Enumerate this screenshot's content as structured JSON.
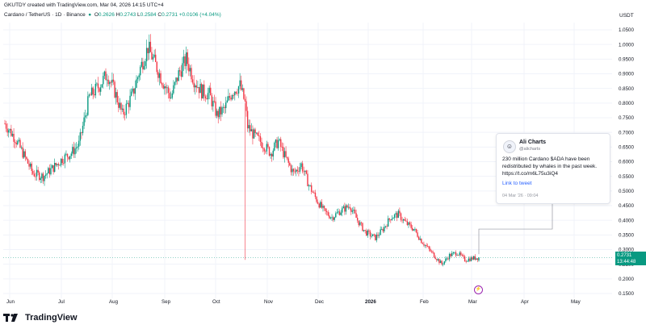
{
  "header": {
    "text": "GKUTDY created with TradingView.com, Mar 04, 2026 14:15 UTC+4"
  },
  "legend": {
    "symbol": "Cardano / TetherUS · 1D · Binance",
    "open_label": "O",
    "open": "0.2626",
    "high_label": "H",
    "high": "0.2743",
    "low_label": "L",
    "low": "0.2584",
    "close_label": "C",
    "close": "0.2731",
    "change": "+0.0106 (+4.04%)"
  },
  "currency": "USDT",
  "tweet": {
    "name": "Ali Charts",
    "handle": "@alicharts",
    "text": "230 million Cardano $ADA have been redistributed by whales in the past week. https://t.co/m6L75u3iQ4",
    "link": "Link to tweet",
    "date": "04 Mar '26 · 09:04"
  },
  "price_label": {
    "price": "0.2731",
    "countdown": "13:44:48"
  },
  "event_icon": "lightning-icon",
  "footer": {
    "brand": "TradingView"
  },
  "colors": {
    "up": "#089981",
    "down": "#f23645",
    "grid": "#f0f3fa",
    "accent": "#2962ff"
  },
  "chart_data": {
    "type": "candlestick",
    "symbol": "ADA/USDT",
    "interval": "1D",
    "ylim": [
      0.15,
      1.05
    ],
    "y_ticks": [
      "1.0500",
      "1.0000",
      "0.9500",
      "0.9000",
      "0.8500",
      "0.8000",
      "0.7500",
      "0.7000",
      "0.6500",
      "0.6000",
      "0.5500",
      "0.5000",
      "0.4500",
      "0.4000",
      "0.3500",
      "0.3000",
      "0.2500",
      "0.2000",
      "0.1500"
    ],
    "x_ticks": [
      "Jun",
      "Jul",
      "Aug",
      "Sep",
      "Oct",
      "Nov",
      "Dec",
      "2026",
      "Feb",
      "Mar",
      "Apr",
      "May"
    ],
    "waypoints": [
      [
        0,
        0.73
      ],
      [
        8,
        0.68
      ],
      [
        14,
        0.63
      ],
      [
        22,
        0.56
      ],
      [
        30,
        0.55
      ],
      [
        38,
        0.58
      ],
      [
        45,
        0.61
      ],
      [
        52,
        0.63
      ],
      [
        58,
        0.66
      ],
      [
        66,
        0.82
      ],
      [
        74,
        0.86
      ],
      [
        80,
        0.9
      ],
      [
        86,
        0.84
      ],
      [
        92,
        0.76
      ],
      [
        100,
        0.83
      ],
      [
        106,
        0.92
      ],
      [
        112,
        0.99
      ],
      [
        118,
        0.93
      ],
      [
        124,
        0.87
      ],
      [
        130,
        0.82
      ],
      [
        136,
        0.9
      ],
      [
        142,
        0.95
      ],
      [
        148,
        0.88
      ],
      [
        154,
        0.84
      ],
      [
        160,
        0.83
      ],
      [
        166,
        0.76
      ],
      [
        172,
        0.78
      ],
      [
        178,
        0.84
      ],
      [
        184,
        0.86
      ],
      [
        188,
        0.8
      ],
      [
        190,
        0.72
      ],
      [
        195,
        0.69
      ],
      [
        202,
        0.66
      ],
      [
        208,
        0.63
      ],
      [
        214,
        0.67
      ],
      [
        220,
        0.61
      ],
      [
        226,
        0.56
      ],
      [
        232,
        0.59
      ],
      [
        238,
        0.52
      ],
      [
        244,
        0.47
      ],
      [
        250,
        0.43
      ],
      [
        256,
        0.41
      ],
      [
        262,
        0.43
      ],
      [
        270,
        0.45
      ],
      [
        276,
        0.4
      ],
      [
        282,
        0.36
      ],
      [
        290,
        0.34
      ],
      [
        296,
        0.37
      ],
      [
        302,
        0.41
      ],
      [
        308,
        0.42
      ],
      [
        314,
        0.39
      ],
      [
        320,
        0.37
      ],
      [
        326,
        0.33
      ],
      [
        332,
        0.3
      ],
      [
        338,
        0.27
      ],
      [
        342,
        0.25
      ],
      [
        348,
        0.28
      ],
      [
        354,
        0.29
      ],
      [
        360,
        0.265
      ],
      [
        366,
        0.27
      ],
      [
        371,
        0.2731
      ]
    ],
    "last": {
      "open": 0.2626,
      "high": 0.2743,
      "low": 0.2584,
      "close": 0.2731
    },
    "annotation": {
      "type": "callout",
      "text_ref": "tweet"
    }
  }
}
